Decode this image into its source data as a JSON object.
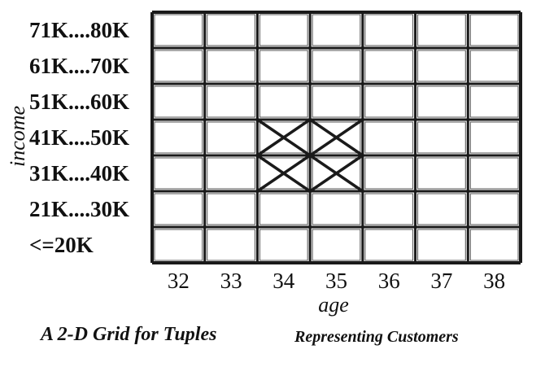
{
  "diagram": {
    "y_axis_label": "income",
    "x_axis_label": "age",
    "income_ranges": [
      "71K....80K",
      "61K....70K",
      "51K....60K",
      "41K....50K",
      "31K....40K",
      "21K....30K",
      "<=20K"
    ],
    "ages": [
      "32",
      "33",
      "34",
      "35",
      "36",
      "37",
      "38"
    ],
    "marked_cells": [
      {
        "age": "34",
        "income": "41K....50K"
      },
      {
        "age": "35",
        "income": "41K....50K"
      },
      {
        "age": "34",
        "income": "31K....40K"
      },
      {
        "age": "35",
        "income": "31K....40K"
      }
    ],
    "caption": {
      "main": "A 2-D Grid for Tuples",
      "sub": "Representing Customers"
    }
  }
}
